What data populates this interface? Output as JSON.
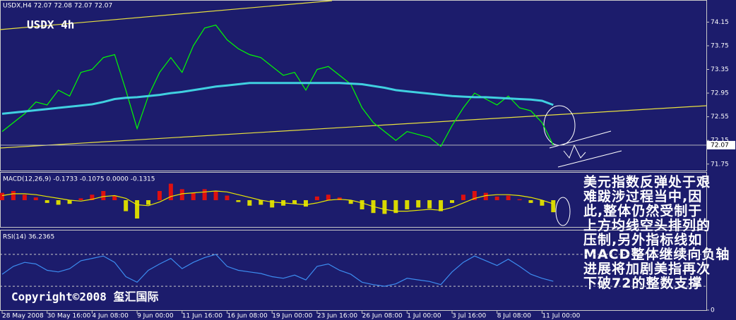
{
  "header": {
    "symbol": "USDX,H4  72.07 72.08 72.07 72.07",
    "watermark": "USDX 4h",
    "copyright": "Copyright©2008 玺汇国际"
  },
  "annotation": [
    "美元指数反弹处于艰",
    "难跋涉过程当中,因",
    "此,整体仍然受制于",
    "上方均线空头排列的",
    "压制,另外指标线如",
    "MACD整体继续向负轴",
    "进展将加剧美指再次",
    "下破72的整数支撑"
  ],
  "chart_data": [
    {
      "type": "line",
      "title": "USDX,H4",
      "ylim": [
        71.64,
        74.5
      ],
      "yticks": [
        74.15,
        73.75,
        73.35,
        72.95,
        72.55,
        72.15,
        71.75
      ],
      "last_price": 72.07,
      "series": [
        {
          "color": "#00ff00",
          "values": [
            72.3,
            72.45,
            72.6,
            72.8,
            72.75,
            73.0,
            72.9,
            73.3,
            73.35,
            73.55,
            73.6,
            73.0,
            72.35,
            72.9,
            73.3,
            73.55,
            73.3,
            73.75,
            74.05,
            74.1,
            73.85,
            73.7,
            73.6,
            73.55,
            73.4,
            73.25,
            73.3,
            73.0,
            73.35,
            73.4,
            73.25,
            73.1,
            72.7,
            72.45,
            72.3,
            72.15,
            72.3,
            72.25,
            72.2,
            72.05,
            72.4,
            72.7,
            72.95,
            72.85,
            72.75,
            72.9,
            72.7,
            72.65,
            72.45,
            72.07
          ]
        },
        {
          "color": "#40d0e0",
          "values": [
            72.6,
            72.62,
            72.64,
            72.66,
            72.68,
            72.7,
            72.72,
            72.74,
            72.76,
            72.8,
            72.85,
            72.87,
            72.88,
            72.9,
            72.92,
            72.95,
            72.97,
            73.0,
            73.03,
            73.06,
            73.08,
            73.1,
            73.12,
            73.12,
            73.12,
            73.12,
            73.12,
            73.12,
            73.12,
            73.12,
            73.12,
            73.11,
            73.1,
            73.07,
            73.04,
            73.0,
            72.98,
            72.96,
            72.94,
            72.92,
            72.9,
            72.89,
            72.88,
            72.88,
            72.87,
            72.86,
            72.85,
            72.84,
            72.82,
            72.75
          ]
        }
      ]
    },
    {
      "type": "bar",
      "title": "MACD(12,26,9) -0.1733 -0.1075 0.0000 -0.1315",
      "ylim": [
        -0.3,
        0.3
      ],
      "color_up": "#dd1010",
      "color_down": "#d8d800",
      "values": [
        0.08,
        0.1,
        0.06,
        0.03,
        -0.03,
        -0.05,
        -0.04,
        0.02,
        0.06,
        0.1,
        0.05,
        -0.12,
        -0.2,
        -0.05,
        0.1,
        0.18,
        0.12,
        0.08,
        0.12,
        0.1,
        0.05,
        -0.02,
        -0.06,
        -0.05,
        -0.08,
        -0.06,
        -0.04,
        -0.07,
        0.04,
        0.06,
        0.03,
        -0.04,
        -0.1,
        -0.14,
        -0.15,
        -0.14,
        -0.1,
        -0.08,
        -0.09,
        -0.12,
        -0.03,
        0.06,
        0.1,
        0.08,
        0.04,
        0.05,
        0.01,
        -0.03,
        -0.06,
        -0.1315
      ],
      "signal": {
        "color": "#e8e800",
        "values": [
          0.05,
          0.07,
          0.07,
          0.06,
          0.04,
          0.02,
          0,
          -0.01,
          0.01,
          0.04,
          0.05,
          0.02,
          -0.05,
          -0.06,
          -0.02,
          0.04,
          0.07,
          0.08,
          0.09,
          0.1,
          0.09,
          0.06,
          0.03,
          0,
          -0.02,
          -0.03,
          -0.04,
          -0.05,
          -0.03,
          0,
          0.01,
          0,
          -0.03,
          -0.07,
          -0.1,
          -0.12,
          -0.12,
          -0.11,
          -0.1,
          -0.11,
          -0.08,
          -0.03,
          0.02,
          0.05,
          0.06,
          0.06,
          0.05,
          0.03,
          0,
          -0.04
        ]
      }
    },
    {
      "type": "line",
      "title": "RSI(14) 36.2365",
      "ylim": [
        0,
        100
      ],
      "yticks": [
        0
      ],
      "levels": [
        30,
        70
      ],
      "categories": [
        "28 May 2008",
        null,
        null,
        null,
        "30 May 16:00",
        null,
        null,
        null,
        "4 Jun 08:00",
        null,
        null,
        null,
        "9 Jun 00:00",
        null,
        null,
        null,
        "11 Jun 16:00",
        null,
        null,
        null,
        "16 Jun 08:00",
        null,
        null,
        null,
        "19 Jun 00:00",
        null,
        null,
        null,
        "23 Jun 16:00",
        null,
        null,
        null,
        "26 Jun 08:00",
        null,
        null,
        null,
        "1 Jul 00:00",
        null,
        null,
        null,
        "3 Jul 16:00",
        null,
        null,
        null,
        "8 Jul 08:00",
        null,
        null,
        null,
        "11 Jul 00:00",
        null
      ],
      "series": [
        {
          "color": "#3c8cf0",
          "values": [
            45,
            55,
            60,
            58,
            50,
            48,
            52,
            62,
            65,
            68,
            60,
            42,
            35,
            50,
            58,
            65,
            52,
            60,
            66,
            70,
            55,
            50,
            48,
            46,
            42,
            40,
            44,
            38,
            55,
            58,
            50,
            45,
            35,
            32,
            30,
            33,
            40,
            38,
            36,
            32,
            48,
            60,
            68,
            62,
            56,
            64,
            55,
            45,
            40,
            36.2365
          ]
        }
      ]
    }
  ]
}
